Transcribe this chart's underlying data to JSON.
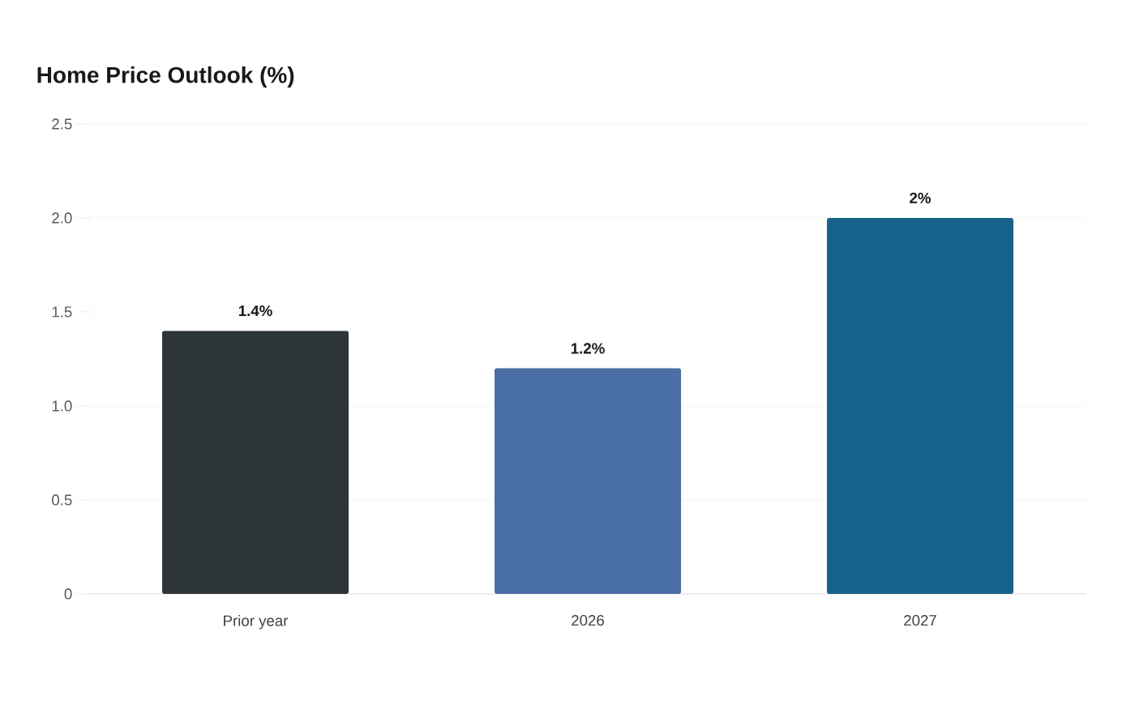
{
  "chart_data": {
    "type": "bar",
    "title": "Home Price Outlook (%)",
    "categories": [
      "Prior year",
      "2026",
      "2027"
    ],
    "values": [
      1.4,
      1.2,
      2
    ],
    "colors": [
      "#2e3538",
      "#4a6fa5",
      "#17628a"
    ],
    "value_labels": [
      "1.4%",
      "1.2%",
      "2%"
    ],
    "ylim": [
      0,
      2.5
    ],
    "yticks": [
      0,
      0.5,
      {
        "value": 1,
        "label": "1.0"
      },
      1.5,
      {
        "value": 2,
        "label": "2.0"
      },
      2.5
    ],
    "grid": "y"
  }
}
